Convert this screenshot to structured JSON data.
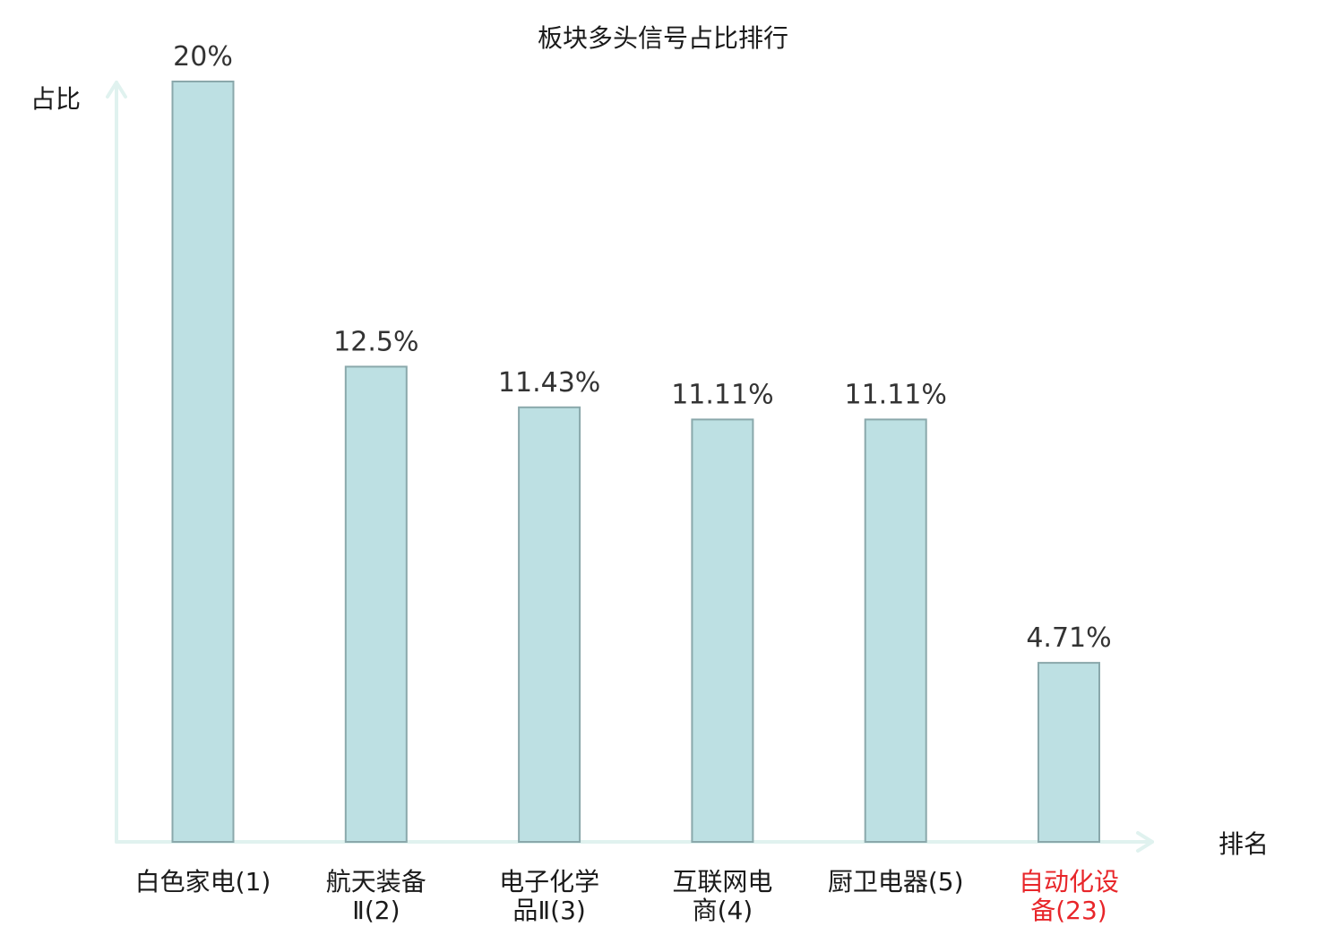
{
  "chart_data": {
    "type": "bar",
    "title": "板块多头信号占比排行",
    "ylabel": "占比",
    "xlabel": "排名",
    "categories": [
      {
        "lines": [
          "白色家电(1)"
        ],
        "highlight": false
      },
      {
        "lines": [
          "航天装备",
          "Ⅱ(2)"
        ],
        "highlight": false
      },
      {
        "lines": [
          "电子化学",
          "品Ⅱ(3)"
        ],
        "highlight": false
      },
      {
        "lines": [
          "互联网电",
          "商(4)"
        ],
        "highlight": false
      },
      {
        "lines": [
          "厨卫电器(5)"
        ],
        "highlight": false
      },
      {
        "lines": [
          "自动化设",
          "备(23)"
        ],
        "highlight": true
      }
    ],
    "values": [
      20,
      12.5,
      11.43,
      11.11,
      11.11,
      4.71
    ],
    "value_labels": [
      "20%",
      "12.5%",
      "11.43%",
      "11.11%",
      "11.11%",
      "4.71%"
    ],
    "ylim": [
      0,
      20
    ],
    "grid": false,
    "colors": {
      "bar_fill": "#bde0e3",
      "bar_stroke": "#8aa8ab",
      "axis": "#e0f2ef",
      "text": "#1a1a1a",
      "highlight": "#e8262a"
    }
  }
}
